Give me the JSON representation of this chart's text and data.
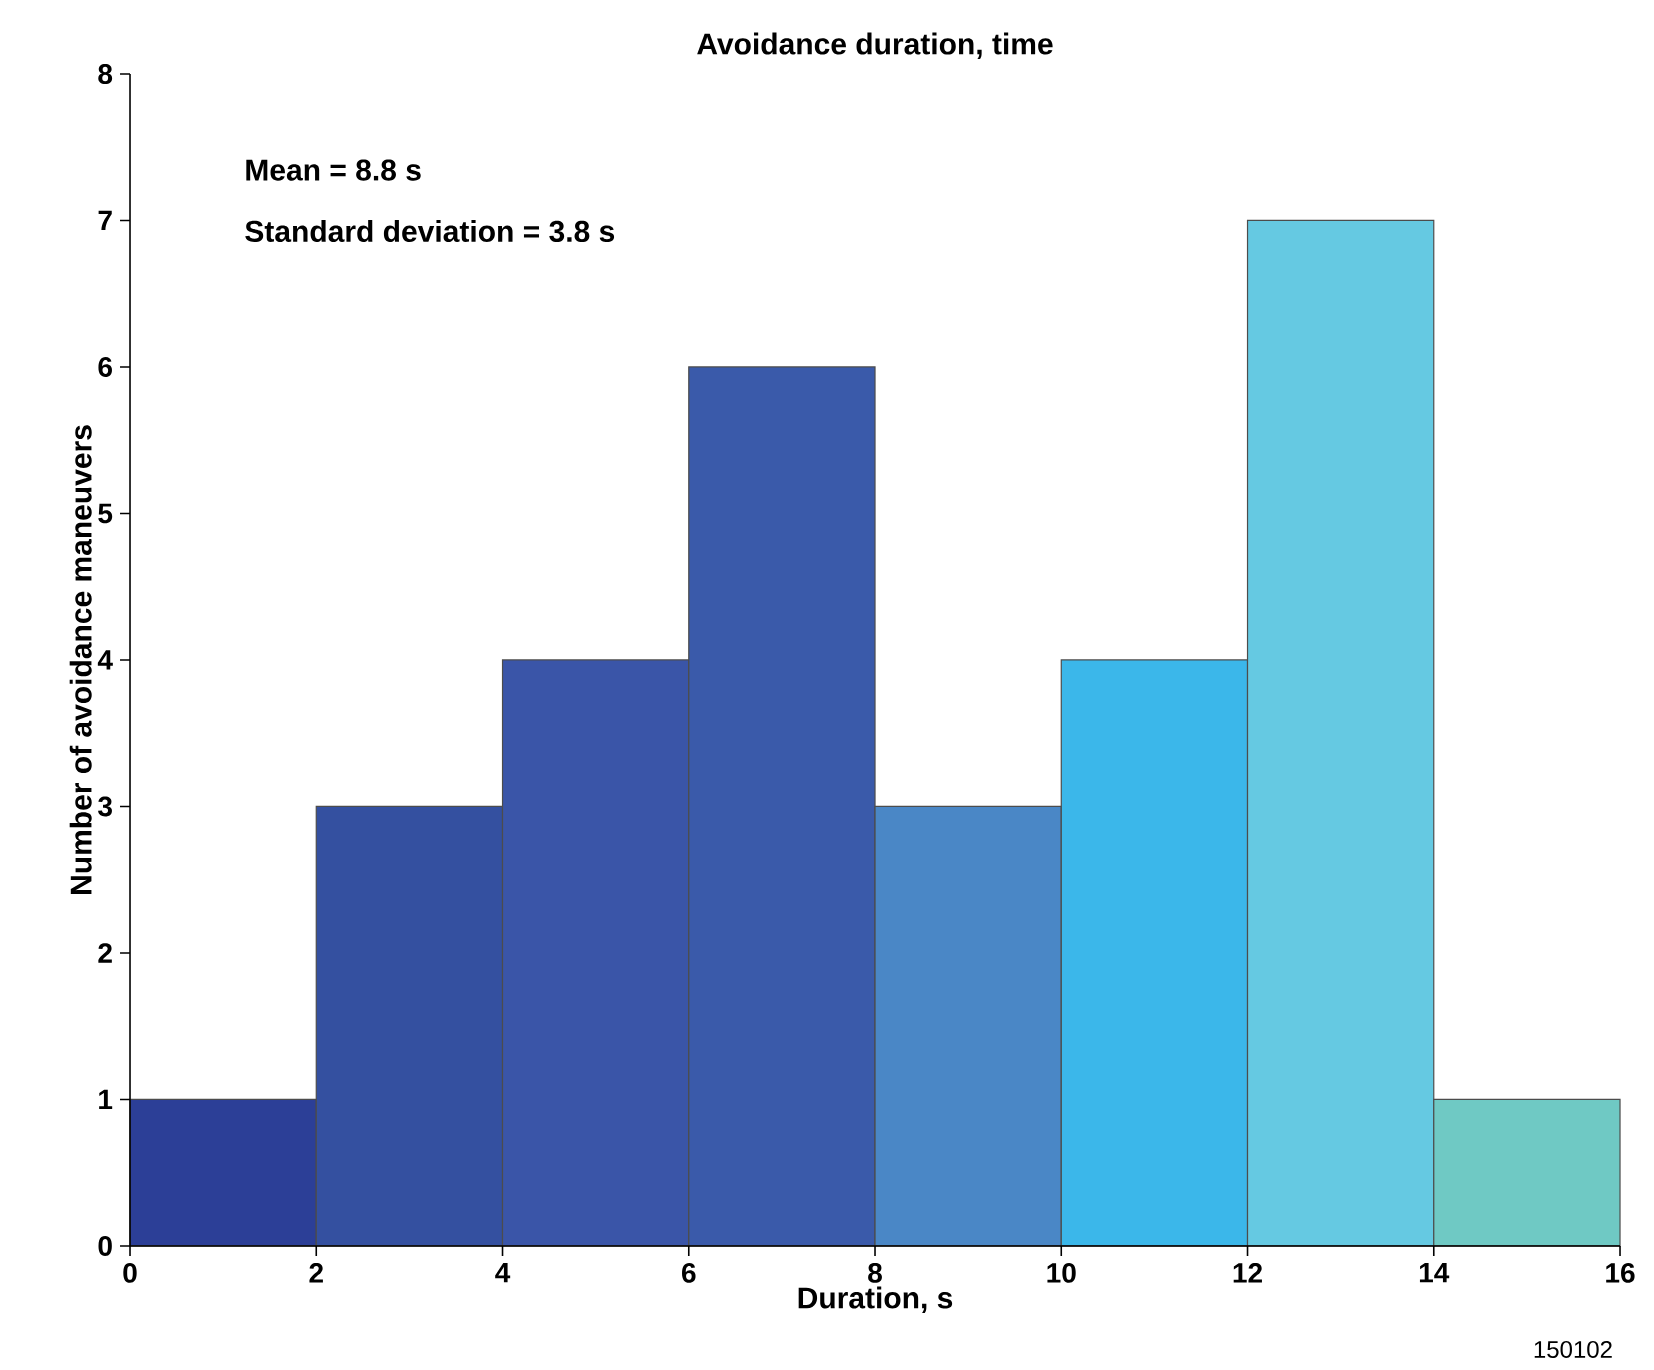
{
  "chart_data": {
    "type": "histogram",
    "title": "Avoidance duration, time",
    "xlabel": "Duration, s",
    "ylabel": "Number of avoidance maneuvers",
    "bins": [
      0,
      2,
      4,
      6,
      8,
      10,
      12,
      14,
      16
    ],
    "values": [
      1,
      3,
      4,
      6,
      3,
      4,
      7,
      1
    ],
    "colors": [
      "#2c3f97",
      "#3450a0",
      "#3a55a8",
      "#3a5aaa",
      "#4a87c6",
      "#3bb7ea",
      "#65c9e2",
      "#6fc9c4"
    ],
    "xlim": [
      0,
      16
    ],
    "ylim": [
      0,
      8
    ],
    "xticks": [
      0,
      2,
      4,
      6,
      8,
      10,
      12,
      14,
      16
    ],
    "yticks": [
      0,
      1,
      2,
      3,
      4,
      5,
      6,
      7,
      8
    ],
    "annotations": [
      "Mean = 8.8 s",
      "Standard deviation = 3.8 s",
      "150102"
    ]
  }
}
